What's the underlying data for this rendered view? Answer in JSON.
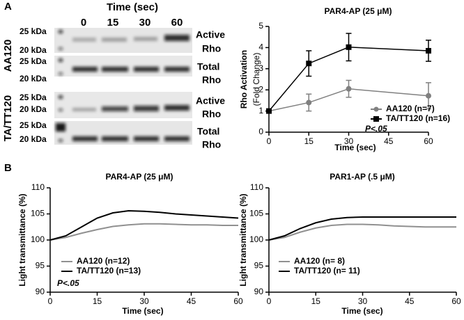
{
  "panel_labels": [
    "A",
    "B"
  ],
  "blot": {
    "title": "Time (sec)",
    "times": [
      "0",
      "15",
      "30",
      "60"
    ],
    "groups": [
      {
        "label": "AA120",
        "rows": [
          {
            "kda": [
              "25 kDa",
              "20 kDa"
            ],
            "label": [
              "Active",
              "Rho"
            ]
          },
          {
            "kda": [
              "25 kDa",
              "20 kDa"
            ],
            "label": [
              "Total",
              "Rho"
            ]
          }
        ]
      },
      {
        "label": "TA/TT120",
        "rows": [
          {
            "kda": [
              "25 kDa",
              "20 kDa"
            ],
            "label": [
              "Active",
              "Rho"
            ]
          },
          {
            "kda": [
              "25 kDa",
              "20 kDa"
            ],
            "label": [
              "Total",
              "Rho"
            ]
          }
        ]
      }
    ]
  },
  "chart_data": [
    {
      "type": "line",
      "title": "PAR4-AP (25 μM)",
      "ylabel": "Rho Activation",
      "ylabel_sub": "(Fold Change)",
      "xlabel": "Time (sec)",
      "x": [
        0,
        15,
        30,
        60
      ],
      "xlim": [
        0,
        60
      ],
      "xticks": [
        0,
        15,
        30,
        45,
        60
      ],
      "ylim": [
        0,
        5
      ],
      "yticks": [
        0,
        1,
        2,
        3,
        4,
        5
      ],
      "series": [
        {
          "name": "AA120 (n=7)",
          "color": "#808080",
          "marker": "circle",
          "values": [
            1,
            1.4,
            2.05,
            1.72
          ],
          "errors": [
            0,
            0.4,
            0.4,
            0.62
          ]
        },
        {
          "name": "TA/TT120 (n=16)",
          "color": "#000000",
          "marker": "square",
          "values": [
            1,
            3.25,
            4.02,
            3.85
          ],
          "errors": [
            0,
            0.6,
            0.65,
            0.5
          ]
        }
      ],
      "annotation": "P<.05"
    },
    {
      "type": "line",
      "title": "PAR4-AP (25 μM)",
      "ylabel": "Light transmittance (%)",
      "xlabel": "Time (sec)",
      "x": [
        0,
        5,
        10,
        15,
        20,
        25,
        30,
        35,
        40,
        45,
        50,
        55,
        60
      ],
      "xlim": [
        0,
        60
      ],
      "xticks": [
        0,
        15,
        30,
        45,
        60
      ],
      "ylim": [
        90,
        110
      ],
      "yticks": [
        90,
        95,
        100,
        105,
        110
      ],
      "series": [
        {
          "name": "AA120 (n=12)",
          "color": "#909090",
          "values": [
            100,
            100.5,
            101.3,
            102.0,
            102.6,
            102.9,
            103.1,
            103.1,
            103.0,
            102.9,
            102.9,
            102.8,
            102.8
          ]
        },
        {
          "name": "TA/TT120 (n=13)",
          "color": "#000000",
          "values": [
            100,
            100.8,
            102.5,
            104.2,
            105.2,
            105.6,
            105.5,
            105.3,
            105.0,
            104.8,
            104.6,
            104.4,
            104.2
          ]
        }
      ],
      "annotation": "P<.05"
    },
    {
      "type": "line",
      "title": "PAR1-AP (.5 μM)",
      "ylabel": "Light transmittance (%)",
      "xlabel": "Time (sec)",
      "x": [
        0,
        5,
        10,
        15,
        20,
        25,
        30,
        35,
        40,
        45,
        50,
        55,
        60
      ],
      "xlim": [
        0,
        60
      ],
      "xticks": [
        0,
        15,
        30,
        45,
        60
      ],
      "ylim": [
        90,
        110
      ],
      "yticks": [
        90,
        95,
        100,
        105,
        110
      ],
      "series": [
        {
          "name": "AA120 (n= 8)",
          "color": "#909090",
          "values": [
            100,
            100.5,
            101.5,
            102.3,
            102.8,
            103.0,
            103.0,
            102.9,
            102.7,
            102.6,
            102.5,
            102.5,
            102.5
          ]
        },
        {
          "name": "TA/TT120 (n= 11)",
          "color": "#000000",
          "values": [
            100,
            100.8,
            102.2,
            103.3,
            104.0,
            104.3,
            104.4,
            104.4,
            104.4,
            104.4,
            104.4,
            104.4,
            104.4
          ]
        }
      ]
    }
  ]
}
